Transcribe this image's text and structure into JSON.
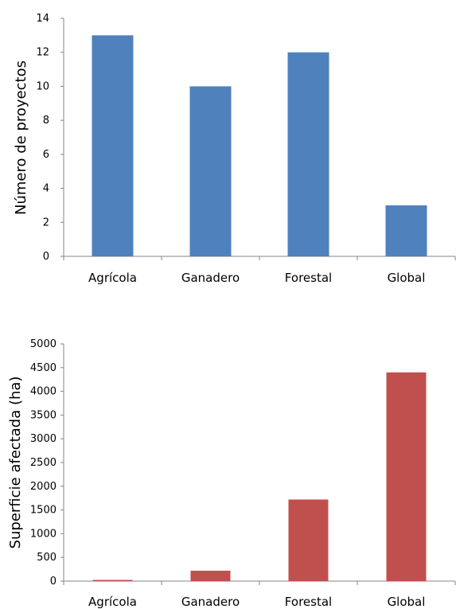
{
  "chart_data": [
    {
      "type": "bar",
      "categories": [
        "Agrícola",
        "Ganadero",
        "Forestal",
        "Global"
      ],
      "values": [
        13,
        10,
        12,
        3
      ],
      "title": "",
      "xlabel": "",
      "ylabel": "Número de proyectos",
      "ylim": [
        0,
        14
      ],
      "yticks": [
        0,
        2,
        4,
        6,
        8,
        10,
        12,
        14
      ],
      "grid": false,
      "legend": "none",
      "color": "#4f81bd"
    },
    {
      "type": "bar",
      "categories": [
        "Agrícola",
        "Ganadero",
        "Forestal",
        "Global"
      ],
      "values": [
        25,
        220,
        1720,
        4400
      ],
      "title": "",
      "xlabel": "",
      "ylabel": "Superficie afectada (ha)",
      "ylim": [
        0,
        5000
      ],
      "yticks": [
        0,
        500,
        1000,
        1500,
        2000,
        2500,
        3000,
        3500,
        4000,
        4500,
        5000
      ],
      "grid": false,
      "legend": "none",
      "color": "#c0504d"
    }
  ]
}
